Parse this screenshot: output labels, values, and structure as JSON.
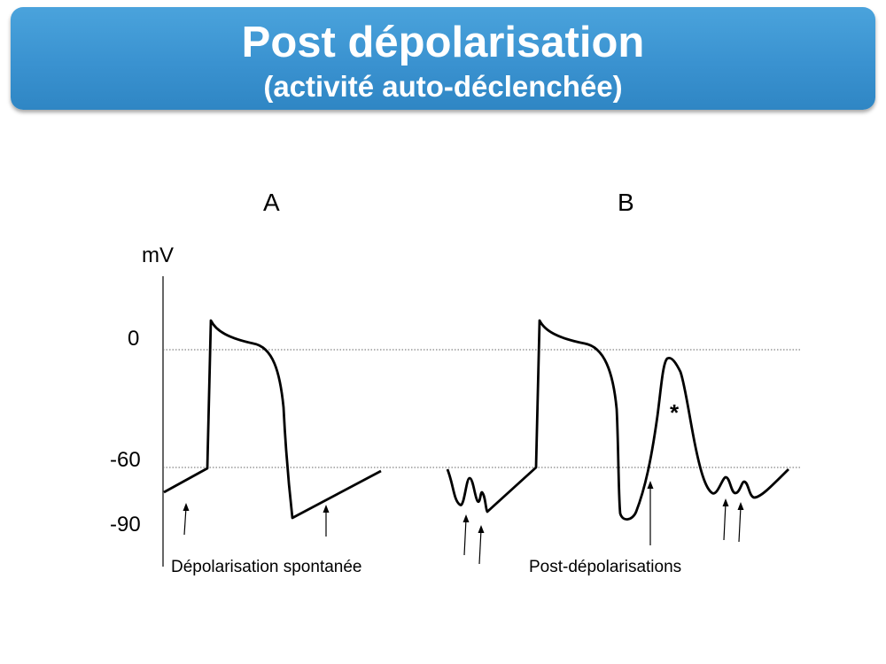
{
  "header": {
    "title": "Post dépolarisation",
    "subtitle": "(activité auto-déclenchée)"
  },
  "panels": {
    "a": {
      "label": "A",
      "caption": "Dépolarisation spontanée"
    },
    "b": {
      "label": "B",
      "caption": "Post-dépolarisations",
      "marker": "*"
    }
  },
  "axis": {
    "unit": "mV",
    "ticks": [
      "0",
      "-60",
      "-90"
    ]
  },
  "colors": {
    "banner": "#3a92d0",
    "banner_text": "#ffffff",
    "trace": "#000000",
    "reference_line": "#666666"
  }
}
